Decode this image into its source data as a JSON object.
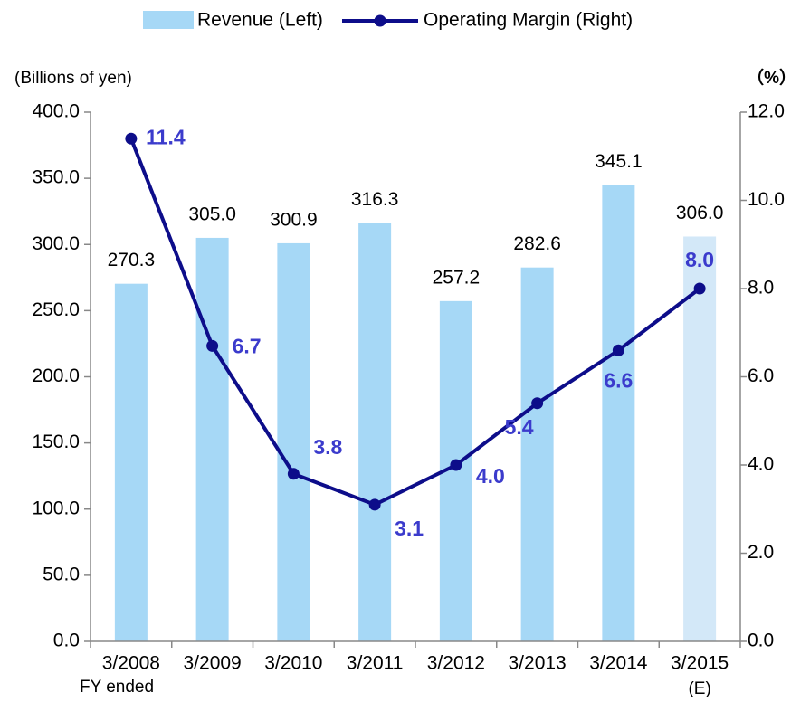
{
  "chart_data": {
    "type": "bar_line",
    "legend": "top",
    "x_label": "FY ended",
    "y_label": "(Billions of yen)",
    "y2_label": "（%）",
    "categories": [
      "3/2008",
      "3/2009",
      "3/2010",
      "3/2011",
      "3/2012",
      "3/2013",
      "3/2014",
      "3/2015"
    ],
    "annotations": [
      "(E)"
    ],
    "series": [
      {
        "name": "Revenue (Left)",
        "type": "bar",
        "axis": "y",
        "color": "#a6d8f6",
        "colors": [
          "#a6d8f6",
          "#a6d8f6",
          "#a6d8f6",
          "#a6d8f6",
          "#a6d8f6",
          "#a6d8f6",
          "#a6d8f6",
          "#d3e8f8"
        ],
        "values": [
          270.3,
          305.0,
          300.9,
          316.3,
          257.2,
          282.6,
          345.1,
          306.0
        ],
        "value_labels": [
          "270.3",
          "305.0",
          "300.9",
          "316.3",
          "257.2",
          "282.6",
          "345.1",
          "306.0"
        ]
      },
      {
        "name": "Operating Margin (Right)",
        "type": "line",
        "axis": "y2",
        "color": "#0d0d8a",
        "label_color": "#3b3bcc",
        "values": [
          11.4,
          6.7,
          3.8,
          3.1,
          4.0,
          5.4,
          6.6,
          8.0
        ],
        "value_labels": [
          "11.4",
          "6.7",
          "3.8",
          "3.1",
          "4.0",
          "5.4",
          "6.6",
          "8.0"
        ]
      }
    ],
    "ylim": [
      0,
      400
    ],
    "yticks": [
      {
        "value": 0,
        "label": "0.0"
      },
      {
        "value": 50,
        "label": "50.0"
      },
      {
        "value": 100,
        "label": "100.0"
      },
      {
        "value": 150,
        "label": "150.0"
      },
      {
        "value": 200,
        "label": "200.0"
      },
      {
        "value": 250,
        "label": "250.0"
      },
      {
        "value": 300,
        "label": "300.0"
      },
      {
        "value": 350,
        "label": "350.0"
      },
      {
        "value": 400,
        "label": "400.0"
      }
    ],
    "y2lim": [
      0,
      12
    ],
    "y2ticks": [
      {
        "value": 0,
        "label": "0.0"
      },
      {
        "value": 2,
        "label": "2.0"
      },
      {
        "value": 4,
        "label": "4.0"
      },
      {
        "value": 6,
        "label": "6.0"
      },
      {
        "value": 8,
        "label": "8.0"
      },
      {
        "value": 10,
        "label": "10.0"
      },
      {
        "value": 12,
        "label": "12.0"
      }
    ]
  }
}
